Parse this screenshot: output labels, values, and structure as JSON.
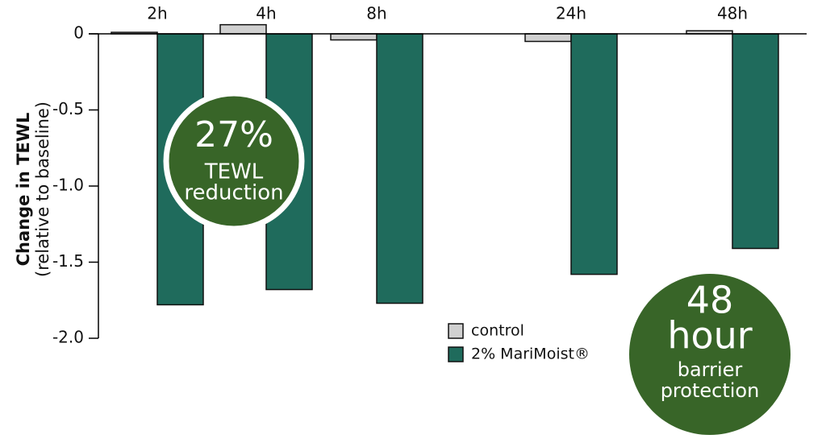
{
  "chart_data": {
    "type": "bar",
    "ylabel": "Change in TEWL",
    "ylabel_sub": "(relative to baseline)",
    "categories": [
      "2h",
      "4h",
      "8h",
      "24h",
      "48h"
    ],
    "series": [
      {
        "name": "control",
        "color": "#d0d0d0",
        "values": [
          0.01,
          0.06,
          -0.04,
          -0.05,
          0.02
        ]
      },
      {
        "name": "2% MariMoist®",
        "color": "#1f6b5c",
        "values": [
          -1.78,
          -1.68,
          -1.77,
          -1.58,
          -1.41
        ]
      }
    ],
    "ylim": [
      -2,
      0
    ],
    "yticks": [
      0,
      -0.5,
      {
        "value": -1,
        "label": "-1.0"
      },
      -1.5,
      {
        "value": -2,
        "label": "-2.0"
      }
    ],
    "annotations": [
      [
        "27%",
        "TEWL",
        "reduction"
      ],
      [
        "48",
        "hour",
        "barrier",
        "protection"
      ]
    ]
  }
}
